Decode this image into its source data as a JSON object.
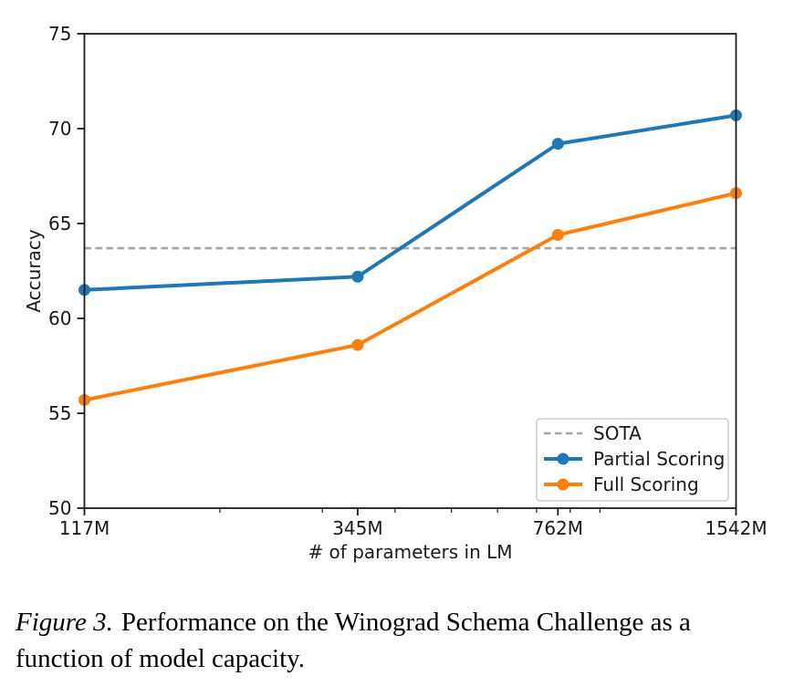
{
  "figure": {
    "caption_prefix": "Figure 3.",
    "caption_line1": "Performance on the Winograd Schema Challenge as a",
    "caption_line2": "function of model capacity."
  },
  "chart_data": {
    "type": "line",
    "title": "",
    "xlabel": "# of parameters in LM",
    "ylabel": "Accuracy",
    "x_scale": "log",
    "x": [
      117,
      345,
      762,
      1542
    ],
    "x_tick_labels": [
      "117M",
      "345M",
      "762M",
      "1542M"
    ],
    "x_minor_ticks": [
      200,
      300,
      400,
      500,
      600,
      700,
      800,
      900
    ],
    "ylim": [
      50,
      75
    ],
    "y_ticks": [
      50,
      55,
      60,
      65,
      70,
      75
    ],
    "grid": false,
    "sota_line": {
      "label": "SOTA",
      "value": 63.7,
      "color": "#a6a6a6",
      "style": "dashed"
    },
    "series": [
      {
        "name": "Partial Scoring",
        "color": "#1f77b4",
        "marker": "circle",
        "values": [
          61.5,
          62.2,
          69.2,
          70.7
        ]
      },
      {
        "name": "Full Scoring",
        "color": "#ff7f0e",
        "marker": "circle",
        "values": [
          55.7,
          58.6,
          64.4,
          66.6
        ]
      }
    ],
    "legend": {
      "position": "lower right",
      "entries": [
        "SOTA",
        "Partial Scoring",
        "Full Scoring"
      ]
    }
  }
}
